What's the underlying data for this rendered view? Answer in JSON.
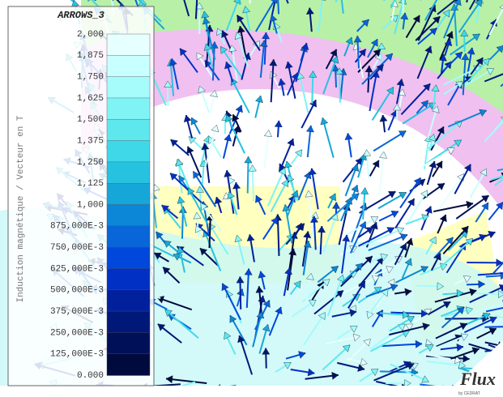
{
  "legend": {
    "title": "ARROWS_3",
    "label": "Induction magnétique / Vecteur en T",
    "ticks": [
      "2,000",
      "1,875",
      "1,750",
      "1,625",
      "1,500",
      "1,375",
      "1,250",
      "1,125",
      "1,000",
      "875,000E-3",
      "750,000E-3",
      "625,000E-3",
      "500,000E-3",
      "375,000E-3",
      "250,000E-3",
      "125,000E-3",
      "0.000"
    ],
    "colors": [
      "#e6ffff",
      "#c8ffff",
      "#a6fbfb",
      "#80f4f4",
      "#5ee8ee",
      "#3ed8e8",
      "#26c2e0",
      "#17a6d8",
      "#0c86d6",
      "#0866d8",
      "#0048dc",
      "#0030c4",
      "#00209c",
      "#001878",
      "#001058",
      "#000a3c"
    ]
  },
  "logo": {
    "name": "Flux",
    "sub": "by CEDRAT"
  }
}
